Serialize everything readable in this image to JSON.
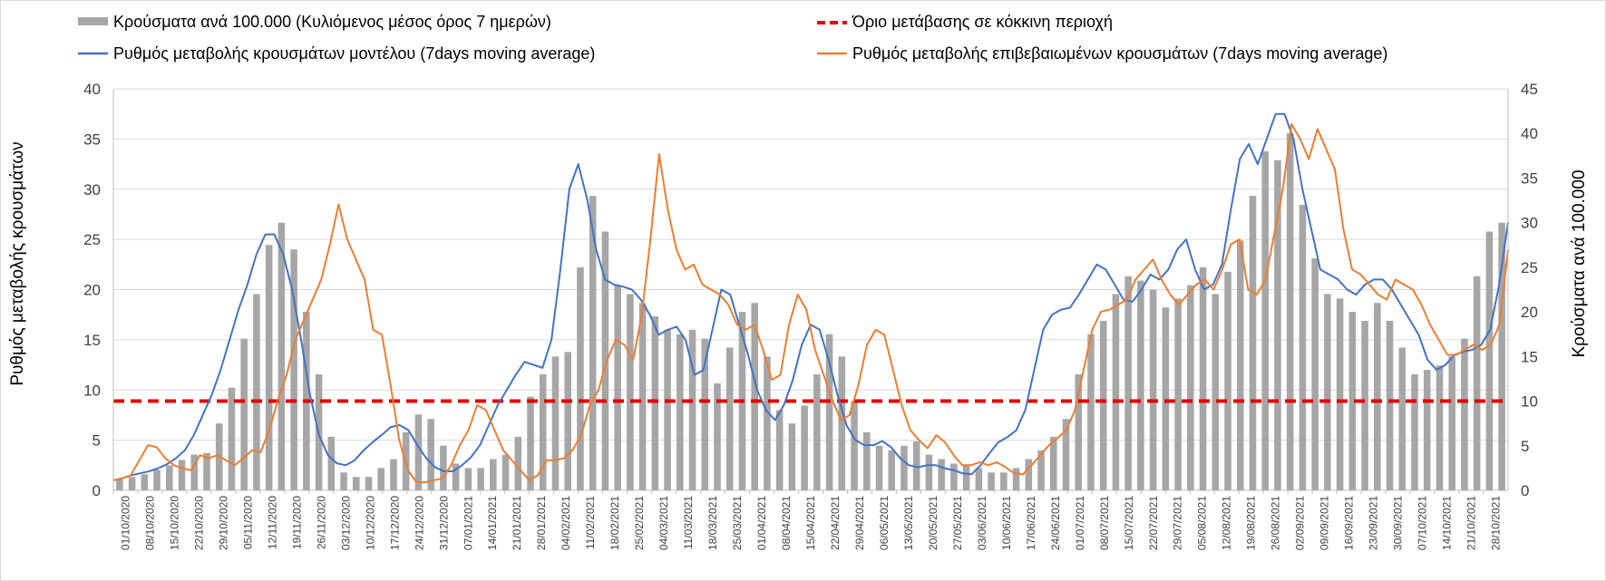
{
  "chart_data": {
    "type": "bar",
    "title": "",
    "ylabel": "Ρυθμός μεταβολής κρουσμάτων",
    "y2label": "Κρούσματα ανά 100.000",
    "ylim": [
      0,
      40
    ],
    "y2lim": [
      0,
      45
    ],
    "yticks": [
      0,
      5,
      10,
      15,
      20,
      25,
      30,
      35,
      40
    ],
    "y2ticks": [
      0,
      5,
      10,
      15,
      20,
      25,
      30,
      35,
      40,
      45
    ],
    "grid": true,
    "legend_position": "top",
    "colors": {
      "bars": "#a6a6a6",
      "model_line": "#4472c4",
      "confirmed_line": "#ed7d31",
      "threshold": "#e00000"
    },
    "x_labels": [
      "01/10/2020",
      "08/10/2020",
      "15/10/2020",
      "22/10/2020",
      "29/10/2020",
      "05/11/2020",
      "12/11/2020",
      "19/11/2020",
      "26/11/2020",
      "03/12/2020",
      "10/12/2020",
      "17/12/2020",
      "24/12/2020",
      "31/12/2020",
      "07/01/2021",
      "14/01/2021",
      "21/01/2021",
      "28/01/2021",
      "04/02/2021",
      "11/02/2021",
      "18/02/2021",
      "25/02/2021",
      "04/03/2021",
      "11/03/2021",
      "18/03/2021",
      "25/03/2021",
      "01/04/2021",
      "08/04/2021",
      "15/04/2021",
      "22/04/2021",
      "29/04/2021",
      "06/05/2021",
      "13/05/2021",
      "20/05/2021",
      "27/05/2021",
      "03/06/2021",
      "10/06/2021",
      "17/06/2021",
      "24/06/2021",
      "01/07/2021",
      "08/07/2021",
      "15/07/2021",
      "22/07/2021",
      "29/07/2021",
      "05/08/2021",
      "12/08/2021",
      "19/08/2021",
      "26/08/2021",
      "02/09/2021",
      "09/09/2021",
      "16/09/2021",
      "23/09/2021",
      "30/09/2021",
      "07/10/2021",
      "14/10/2021",
      "21/10/2021",
      "28/10/2021"
    ],
    "series": [
      {
        "name": "Κρούσματα ανά 100.000 (Κυλιόμενος μέσος όρος 7 ημερών)",
        "type": "bar",
        "axis": "right",
        "values": [
          1.3,
          1.5,
          1.8,
          2.3,
          2.8,
          3.4,
          4.0,
          4.2,
          7.5,
          11.5,
          17.0,
          22.0,
          27.5,
          30.0,
          27.0,
          20.0,
          13.0,
          6.0,
          2.0,
          1.5,
          1.5,
          2.5,
          3.5,
          6.5,
          8.5,
          8.0,
          5.0,
          3.0,
          2.5,
          2.5,
          3.5,
          4.0,
          6.0,
          10.5,
          13.0,
          15.0,
          15.5,
          25.0,
          33.0,
          29.0,
          23.0,
          22.0,
          21.0,
          19.5,
          18.0,
          17.5,
          18.0,
          17.0,
          12.0,
          16.0,
          20.0,
          21.0,
          15.0,
          9.0,
          7.5,
          9.5,
          13.0,
          17.5,
          15.0,
          10.0,
          6.5,
          5.0,
          4.5,
          5.0,
          5.5,
          4.0,
          3.5,
          3.0,
          2.8,
          2.5,
          2.0,
          2.0,
          2.5,
          3.5,
          4.5,
          6.0,
          8.0,
          13.0,
          17.5,
          19.0,
          22.0,
          24.0,
          23.5,
          22.5,
          20.5,
          21.5,
          23.0,
          25.0,
          22.0,
          24.5,
          28.0,
          33.0,
          38.0,
          37.0,
          40.0,
          32.0,
          26.0,
          22.0,
          21.5,
          20.0,
          19.0,
          21.0,
          19.0,
          16.0,
          13.0,
          13.5,
          14.0,
          15.0,
          17.0,
          24.0,
          29.0,
          30.0
        ]
      },
      {
        "name": "Ρυθμός μεταβολής κρουσμάτων μοντέλου (7days moving average)",
        "type": "line",
        "axis": "left",
        "values": [
          1.0,
          1.2,
          1.5,
          1.7,
          1.9,
          2.2,
          2.6,
          3.2,
          4.0,
          5.5,
          7.5,
          9.5,
          12.0,
          15.0,
          18.0,
          20.5,
          23.5,
          25.5,
          25.5,
          23.5,
          20.0,
          15.0,
          9.5,
          5.5,
          3.5,
          2.7,
          2.5,
          3.0,
          4.0,
          4.8,
          5.5,
          6.3,
          6.5,
          6.0,
          4.5,
          3.2,
          2.3,
          1.9,
          1.9,
          2.5,
          3.3,
          4.5,
          6.5,
          8.5,
          10.0,
          11.5,
          12.8,
          12.5,
          12.2,
          15.0,
          22.0,
          30.0,
          32.5,
          29.0,
          24.0,
          21.0,
          20.5,
          20.3,
          20.0,
          19.0,
          17.5,
          15.5,
          16.0,
          16.3,
          15.0,
          11.5,
          12.0,
          16.0,
          20.0,
          19.5,
          16.5,
          13.5,
          10.0,
          8.0,
          7.0,
          8.5,
          11.0,
          14.5,
          16.5,
          16.0,
          13.0,
          9.5,
          6.5,
          5.0,
          4.5,
          4.5,
          4.9,
          4.3,
          3.2,
          2.5,
          2.3,
          2.5,
          2.5,
          2.2,
          2.0,
          1.7,
          1.6,
          2.5,
          3.7,
          4.8,
          5.3,
          6.0,
          8.0,
          12.0,
          16.0,
          17.5,
          18.0,
          18.2,
          19.5,
          21.0,
          22.5,
          22.0,
          20.5,
          19.0,
          18.8,
          20.0,
          21.5,
          21.0,
          22.0,
          24.0,
          25.0,
          22.0,
          20.0,
          20.5,
          22.5,
          28.0,
          33.0,
          34.5,
          32.5,
          35.0,
          37.5,
          37.5,
          35.0,
          30.0,
          26.0,
          22.0,
          21.5,
          21.0,
          20.0,
          19.5,
          20.5,
          21.0,
          21.0,
          20.0,
          18.5,
          17.0,
          15.5,
          13.0,
          12.0,
          12.5,
          13.5,
          13.8,
          14.0,
          14.5,
          16.0,
          20.5,
          26.7
        ]
      },
      {
        "name": "Ρυθμός μεταβολής επιβεβαιωμένων κρουσμάτων (7days moving average)",
        "type": "line",
        "axis": "left",
        "values": [
          1.0,
          1.2,
          1.5,
          3.0,
          4.5,
          4.3,
          3.2,
          2.5,
          2.2,
          2.0,
          3.5,
          3.2,
          3.5,
          3.0,
          2.5,
          3.2,
          4.0,
          3.8,
          6.0,
          9.0,
          11.5,
          15.0,
          17.0,
          19.0,
          21.0,
          24.5,
          28.5,
          25.0,
          23.0,
          21.0,
          16.0,
          15.5,
          10.5,
          5.0,
          2.0,
          0.8,
          0.8,
          1.0,
          1.2,
          2.5,
          4.5,
          6.0,
          8.5,
          8.0,
          6.0,
          4.0,
          3.0,
          2.0,
          1.0,
          1.5,
          3.0,
          3.0,
          3.2,
          4.0,
          5.5,
          8.5,
          10.0,
          13.0,
          15.0,
          14.5,
          13.0,
          17.5,
          25.0,
          33.5,
          28.0,
          24.0,
          22.0,
          22.5,
          20.5,
          20.0,
          19.5,
          18.5,
          16.5,
          16.0,
          16.5,
          14.0,
          11.0,
          11.5,
          16.5,
          19.5,
          18.0,
          14.0,
          11.5,
          9.0,
          7.0,
          7.5,
          10.5,
          14.5,
          16.0,
          15.5,
          12.0,
          8.5,
          6.0,
          5.0,
          4.2,
          5.5,
          4.8,
          3.5,
          2.5,
          2.5,
          2.8,
          2.5,
          2.8,
          2.3,
          1.7,
          1.6,
          2.5,
          3.5,
          4.5,
          5.2,
          6.0,
          8.0,
          12.0,
          16.0,
          17.8,
          18.0,
          18.5,
          19.0,
          21.0,
          22.0,
          23.0,
          21.0,
          19.5,
          18.5,
          19.5,
          20.5,
          21.0,
          20.0,
          22.0,
          24.5,
          25.0,
          20.0,
          19.5,
          21.0,
          25.5,
          30.0,
          36.5,
          35.0,
          33.0,
          36.0,
          34.0,
          32.0,
          26.0,
          22.0,
          21.5,
          20.5,
          19.5,
          19.0,
          21.0,
          20.5,
          20.0,
          18.5,
          16.5,
          15.0,
          13.5,
          13.5,
          14.0,
          14.5,
          14.0,
          14.5,
          16.5,
          24.0
        ]
      },
      {
        "name": "Όριο μετάβασης σε κόκκινη περιοχή",
        "type": "threshold",
        "axis": "right",
        "value": 10
      }
    ]
  }
}
